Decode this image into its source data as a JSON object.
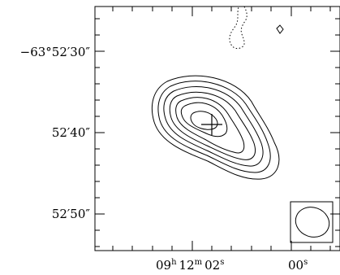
{
  "chart_data": {
    "type": "contour",
    "title": "",
    "xlabel": "",
    "ylabel": "",
    "x_tick_labels": [
      {
        "h": "09",
        "h_unit": "h",
        "m": "12",
        "m_unit": "m",
        "s": "02",
        "s_unit": "s"
      },
      {
        "s": "00",
        "s_unit": "s"
      }
    ],
    "y_tick_labels": [
      {
        "text": "−63°52′30″",
        "dec_arcsec": -30
      },
      {
        "text": "52′40″",
        "dec_arcsec": -40
      },
      {
        "text": "52′50″",
        "dec_arcsec": -50
      }
    ],
    "x_ticks_seconds": [
      2,
      0
    ],
    "y_ticks_arcsec": [
      -30,
      -40,
      -50
    ],
    "xlim_seconds": [
      3.2,
      -0.6
    ],
    "ylim_arcsec": [
      -55,
      -25
    ],
    "source_marker": {
      "type": "cross",
      "ra_s": 1.7,
      "dec_arcsec": -39
    },
    "positive_contour_levels": 7,
    "negative_contour_levels": 1,
    "beam": {
      "shape": "ellipse",
      "position": "bottom-right"
    },
    "grid": false,
    "legend": "none"
  }
}
